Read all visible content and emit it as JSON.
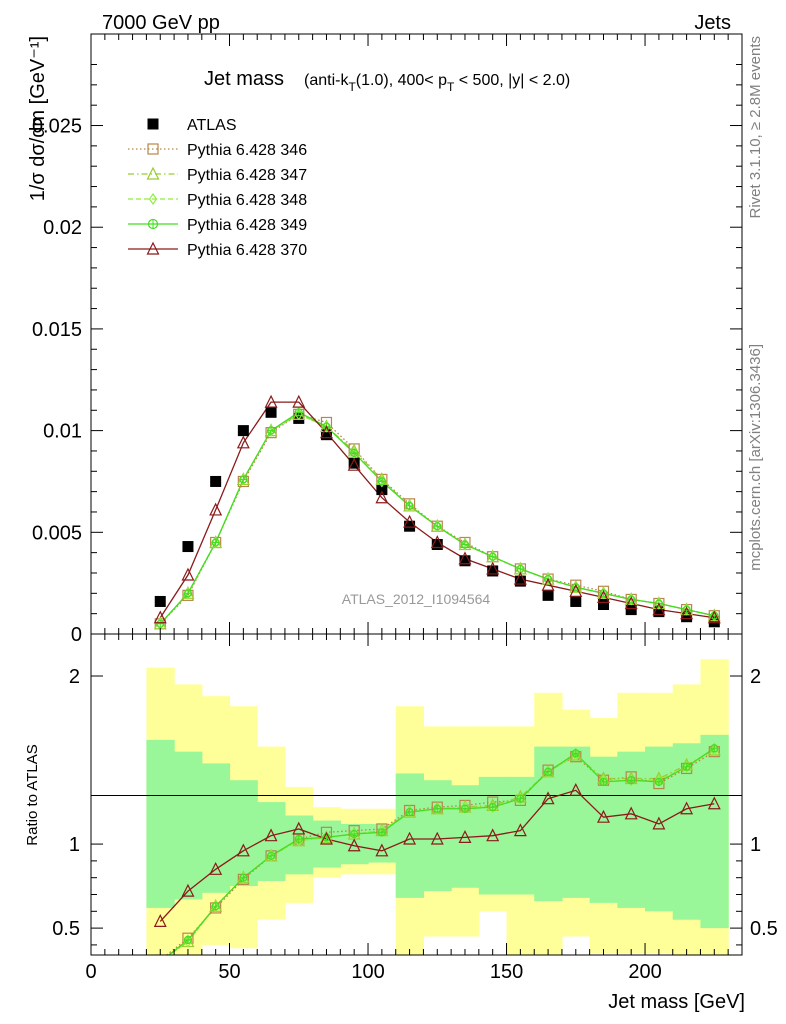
{
  "header": {
    "left": "7000 GeV pp",
    "right": "Jets"
  },
  "side_labels": {
    "rivet": "Rivet 3.1.10, ≥ 2.8M events",
    "mcplots": "mcplots.cern.ch [arXiv:1306.3436]"
  },
  "watermark": "ATLAS_2012_I1094564",
  "chart_data": [
    {
      "type": "scatter",
      "title": "Jet mass",
      "subtitle_parts": {
        "pre": "(anti-k",
        "sub1": "T",
        "mid1": "(1.0), 400< p",
        "sub2": "T",
        "post": " < 500, |y| < 2.0)"
      },
      "ylabel": "1/σ dσ/dm [GeV⁻¹]",
      "xlim": [
        0,
        235
      ],
      "ylim": [
        0,
        0.0295
      ],
      "yticks": [
        0,
        0.005,
        0.01,
        0.015,
        0.02,
        0.025
      ],
      "ytick_labels": [
        "0",
        "0.005",
        "0.01",
        "0.015",
        "0.02",
        "0.025"
      ],
      "x": [
        25,
        35,
        45,
        55,
        65,
        75,
        85,
        95,
        105,
        115,
        125,
        135,
        145,
        155,
        165,
        175,
        185,
        195,
        205,
        215,
        225
      ],
      "legend": [
        {
          "name": "ATLAS",
          "color": "#000000",
          "marker": "square-filled",
          "line": "none"
        },
        {
          "name": "Pythia 6.428 346",
          "color": "#b8864b",
          "marker": "square-open",
          "line": "dotted"
        },
        {
          "name": "Pythia 6.428 347",
          "color": "#9acd32",
          "marker": "triangle-open",
          "line": "dashdot"
        },
        {
          "name": "Pythia 6.428 348",
          "color": "#90ee40",
          "marker": "diamond-open",
          "line": "dashed"
        },
        {
          "name": "Pythia 6.428 349",
          "color": "#44dd22",
          "marker": "circle-cross",
          "line": "solid"
        },
        {
          "name": "Pythia 6.428 370",
          "color": "#8b1a1a",
          "marker": "triangle-open",
          "line": "solid"
        }
      ],
      "series": [
        {
          "name": "ATLAS",
          "values": [
            0.0016,
            0.0043,
            0.0075,
            0.01,
            0.0109,
            0.0106,
            0.0098,
            0.0084,
            0.0071,
            0.0053,
            0.0044,
            0.0036,
            0.0031,
            0.0026,
            0.0019,
            0.0016,
            0.00145,
            0.0012,
            0.0011,
            0.00085,
            0.0006
          ]
        },
        {
          "name": "Pythia 6.428 346",
          "values": [
            0.0005,
            0.0019,
            0.0045,
            0.0075,
            0.0099,
            0.0108,
            0.0104,
            0.0091,
            0.0076,
            0.0064,
            0.0053,
            0.0045,
            0.0038,
            0.0032,
            0.0027,
            0.0024,
            0.0021,
            0.0017,
            0.0015,
            0.0012,
            0.0009
          ]
        },
        {
          "name": "Pythia 6.428 347",
          "values": [
            0.0005,
            0.002,
            0.0045,
            0.0076,
            0.01,
            0.0108,
            0.0102,
            0.009,
            0.0076,
            0.0063,
            0.0053,
            0.0044,
            0.0038,
            0.0032,
            0.0027,
            0.0023,
            0.002,
            0.0017,
            0.0015,
            0.0012,
            0.0009
          ]
        },
        {
          "name": "Pythia 6.428 348",
          "values": [
            0.0005,
            0.002,
            0.0045,
            0.0076,
            0.01,
            0.0108,
            0.0102,
            0.0089,
            0.0075,
            0.0063,
            0.0053,
            0.0044,
            0.0038,
            0.0032,
            0.0027,
            0.0023,
            0.002,
            0.0017,
            0.0015,
            0.0012,
            0.0009
          ]
        },
        {
          "name": "Pythia 6.428 349",
          "values": [
            0.0005,
            0.002,
            0.0045,
            0.0076,
            0.01,
            0.0109,
            0.0102,
            0.0089,
            0.0075,
            0.0063,
            0.0053,
            0.0044,
            0.0038,
            0.0032,
            0.0027,
            0.0023,
            0.002,
            0.0017,
            0.0015,
            0.0012,
            0.0009
          ]
        },
        {
          "name": "Pythia 6.428 370",
          "values": [
            0.0008,
            0.0029,
            0.0061,
            0.0094,
            0.0114,
            0.0114,
            0.0099,
            0.0083,
            0.0067,
            0.0055,
            0.0045,
            0.0037,
            0.0032,
            0.0027,
            0.0024,
            0.0021,
            0.0018,
            0.0015,
            0.0012,
            0.001,
            0.0008
          ]
        }
      ]
    },
    {
      "type": "line",
      "ylabel": "Ratio to ATLAS",
      "xlabel": "Jet mass [GeV]",
      "xlim": [
        0,
        235
      ],
      "ylim": [
        0.34,
        2.25
      ],
      "yticks": [
        0.5,
        1,
        2
      ],
      "ytick_labels": [
        "0.5",
        "1",
        "2"
      ],
      "xticks": [
        0,
        50,
        100,
        150,
        200
      ],
      "xtick_labels": [
        "0",
        "50",
        "100",
        "150",
        "200"
      ],
      "x": [
        25,
        35,
        45,
        55,
        65,
        75,
        85,
        95,
        105,
        115,
        125,
        135,
        145,
        155,
        165,
        175,
        185,
        195,
        205,
        215,
        225
      ],
      "bin_edges": [
        20,
        30,
        40,
        50,
        60,
        70,
        80,
        90,
        100,
        110,
        120,
        130,
        140,
        150,
        160,
        170,
        180,
        190,
        200,
        210,
        220,
        230
      ],
      "band_stat": {
        "lower": [
          0.62,
          0.67,
          0.71,
          0.75,
          0.78,
          0.82,
          0.86,
          0.88,
          0.89,
          0.68,
          0.72,
          0.74,
          0.7,
          0.7,
          0.66,
          0.68,
          0.65,
          0.62,
          0.6,
          0.55,
          0.5
        ],
        "upper": [
          1.62,
          1.55,
          1.48,
          1.38,
          1.25,
          1.17,
          1.14,
          1.12,
          1.12,
          1.42,
          1.38,
          1.35,
          1.4,
          1.4,
          1.58,
          1.58,
          1.52,
          1.55,
          1.58,
          1.6,
          1.65
        ]
      },
      "band_total": {
        "lower": [
          0.25,
          0.3,
          0.4,
          0.38,
          0.55,
          0.65,
          0.8,
          0.82,
          0.82,
          0.3,
          0.45,
          0.45,
          0.6,
          0.3,
          0.2,
          0.45,
          0.35,
          0.35,
          0.35,
          0.3,
          0.2
        ],
        "upper": [
          2.05,
          1.95,
          1.88,
          1.82,
          1.58,
          1.34,
          1.22,
          1.21,
          1.21,
          1.82,
          1.7,
          1.7,
          1.7,
          1.7,
          1.9,
          1.8,
          1.75,
          1.9,
          1.9,
          1.95,
          2.1
        ]
      },
      "series": [
        {
          "name": "Pythia 6.428 346",
          "values": [
            0.31,
            0.44,
            0.62,
            0.79,
            0.93,
            1.03,
            1.07,
            1.08,
            1.09,
            1.2,
            1.22,
            1.23,
            1.25,
            1.26,
            1.44,
            1.52,
            1.38,
            1.4,
            1.36,
            1.45,
            1.55
          ]
        },
        {
          "name": "Pythia 6.428 347",
          "values": [
            0.3,
            0.42,
            0.63,
            0.8,
            0.93,
            1.02,
            1.04,
            1.06,
            1.08,
            1.19,
            1.21,
            1.22,
            1.23,
            1.28,
            1.43,
            1.53,
            1.39,
            1.39,
            1.39,
            1.47,
            1.56
          ]
        },
        {
          "name": "Pythia 6.428 348",
          "values": [
            0.3,
            0.42,
            0.63,
            0.8,
            0.93,
            1.02,
            1.04,
            1.06,
            1.08,
            1.19,
            1.21,
            1.22,
            1.22,
            1.27,
            1.43,
            1.53,
            1.38,
            1.38,
            1.38,
            1.46,
            1.56
          ]
        },
        {
          "name": "Pythia 6.428 349",
          "values": [
            0.3,
            0.43,
            0.63,
            0.8,
            0.93,
            1.03,
            1.04,
            1.06,
            1.07,
            1.19,
            1.21,
            1.21,
            1.22,
            1.27,
            1.43,
            1.54,
            1.37,
            1.38,
            1.37,
            1.46,
            1.57
          ]
        },
        {
          "name": "Pythia 6.428 370",
          "values": [
            0.54,
            0.72,
            0.85,
            0.96,
            1.05,
            1.09,
            1.03,
            0.99,
            0.96,
            1.03,
            1.03,
            1.04,
            1.05,
            1.08,
            1.27,
            1.32,
            1.16,
            1.18,
            1.12,
            1.21,
            1.24
          ]
        }
      ]
    }
  ]
}
